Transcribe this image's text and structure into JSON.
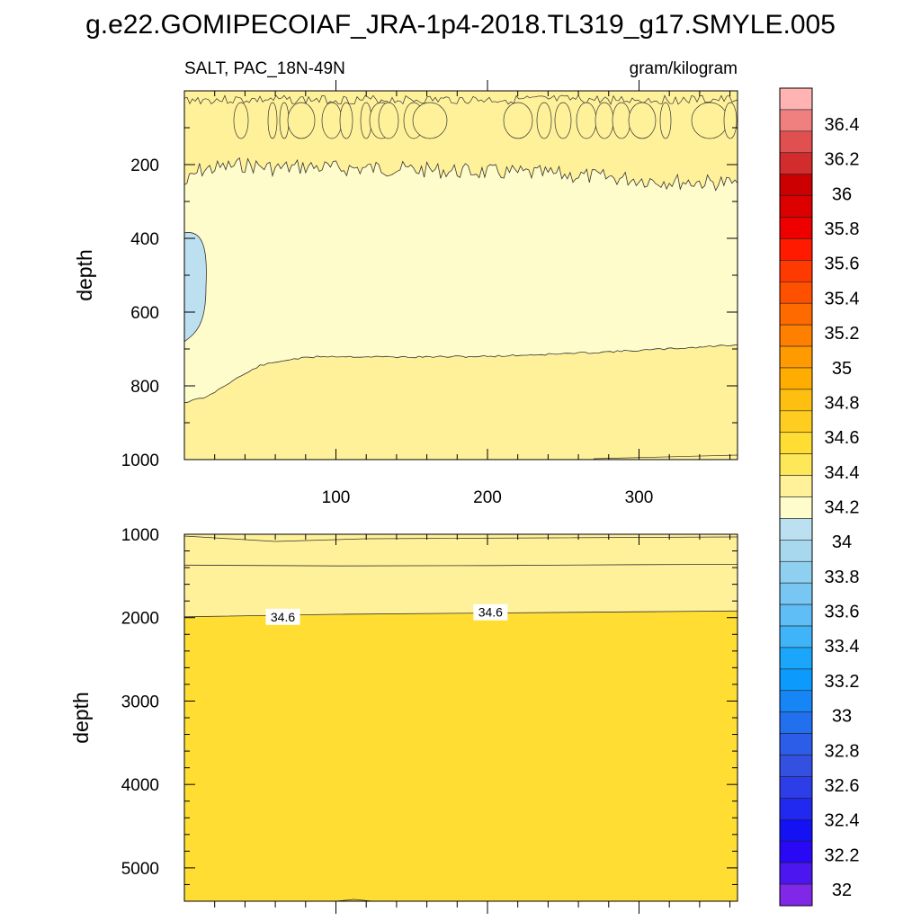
{
  "title": "g.e22.GOMIPECOIAF_JRA-1p4-2018.TL319_g17.SMYLE.005",
  "variable_label": "SALT, PAC_18N-49N",
  "units_label": "gram/kilogram",
  "colors": {
    "blue_region": "#bde0f0",
    "salt_34_2_34_4": "#fffccc",
    "salt_34_4_34_6": "#fff199",
    "salt_34_6_34_8": "#ffdd33"
  },
  "chart_data": [
    {
      "type": "heatmap",
      "panel": "upper",
      "ylabel": "depth",
      "xlabel": "",
      "xlim": [
        0,
        365
      ],
      "ylim": [
        1000,
        0
      ],
      "x_ticks": [
        100,
        200,
        300
      ],
      "y_ticks": [
        200,
        400,
        600,
        800,
        1000
      ],
      "contour_level_34_4_upper_depth": [
        {
          "x": 0,
          "y": 255
        },
        {
          "x": 10,
          "y": 215
        },
        {
          "x": 20,
          "y": 210
        },
        {
          "x": 40,
          "y": 200
        },
        {
          "x": 60,
          "y": 210
        },
        {
          "x": 80,
          "y": 205
        },
        {
          "x": 100,
          "y": 210
        },
        {
          "x": 130,
          "y": 210
        },
        {
          "x": 160,
          "y": 215
        },
        {
          "x": 200,
          "y": 220
        },
        {
          "x": 240,
          "y": 225
        },
        {
          "x": 280,
          "y": 235
        },
        {
          "x": 320,
          "y": 245
        },
        {
          "x": 365,
          "y": 250
        }
      ],
      "contour_level_34_4_lower_depth": [
        {
          "x": 0,
          "y": 845
        },
        {
          "x": 15,
          "y": 830
        },
        {
          "x": 30,
          "y": 790
        },
        {
          "x": 50,
          "y": 745
        },
        {
          "x": 70,
          "y": 728
        },
        {
          "x": 90,
          "y": 720
        },
        {
          "x": 150,
          "y": 722
        },
        {
          "x": 200,
          "y": 720
        },
        {
          "x": 250,
          "y": 713
        },
        {
          "x": 300,
          "y": 704
        },
        {
          "x": 340,
          "y": 695
        },
        {
          "x": 365,
          "y": 688
        }
      ],
      "low_salinity_patch_depth_range": [
        385,
        680
      ]
    },
    {
      "type": "heatmap",
      "panel": "lower",
      "ylabel": "depth",
      "xlabel": "",
      "xlim": [
        0,
        365
      ],
      "ylim": [
        5400,
        1000
      ],
      "y_ticks": [
        1000,
        2000,
        3000,
        4000,
        5000
      ],
      "contour_34_6_depth": [
        {
          "x": 0,
          "y": 1990
        },
        {
          "x": 100,
          "y": 1960
        },
        {
          "x": 200,
          "y": 1945
        },
        {
          "x": 300,
          "y": 1930
        },
        {
          "x": 365,
          "y": 1920
        }
      ],
      "contour_upper_depth": [
        {
          "x": 0,
          "y": 1370
        },
        {
          "x": 100,
          "y": 1380
        },
        {
          "x": 200,
          "y": 1375
        },
        {
          "x": 300,
          "y": 1365
        },
        {
          "x": 365,
          "y": 1360
        }
      ],
      "contour_labels": [
        {
          "text": "34.6",
          "x": 65,
          "y": 1990
        },
        {
          "text": "34.6",
          "x": 202,
          "y": 1935
        }
      ]
    },
    {
      "type": "colorbar",
      "levels": [
        "36.4",
        "36.2",
        "36",
        "35.8",
        "35.6",
        "35.4",
        "35.2",
        "35",
        "34.8",
        "34.6",
        "34.4",
        "34.2",
        "34",
        "33.8",
        "33.6",
        "33.4",
        "33.2",
        "33",
        "32.8",
        "32.6",
        "32.4",
        "32.2",
        "32"
      ],
      "bin_colors_top_to_bottom": [
        "#ffb3b3",
        "#f08080",
        "#e05050",
        "#d22c2c",
        "#cc0000",
        "#dd0000",
        "#ee0000",
        "#ff1a00",
        "#ff3a00",
        "#ff5000",
        "#ff6a00",
        "#ff7f00",
        "#ff9a00",
        "#ffad00",
        "#ffbf10",
        "#ffcd20",
        "#ffdd33",
        "#ffe75a",
        "#fff199",
        "#fffccc",
        "#bde0f0",
        "#a8d8ee",
        "#8fcfef",
        "#78c6f2",
        "#5fbef5",
        "#40b4f8",
        "#1aa6fb",
        "#0c9afc",
        "#1685f5",
        "#2270ef",
        "#2b5de8",
        "#3450e0",
        "#2d3ee8",
        "#2128f0",
        "#1412f5",
        "#2808f5",
        "#4c16f0",
        "#8028e8"
      ]
    }
  ]
}
